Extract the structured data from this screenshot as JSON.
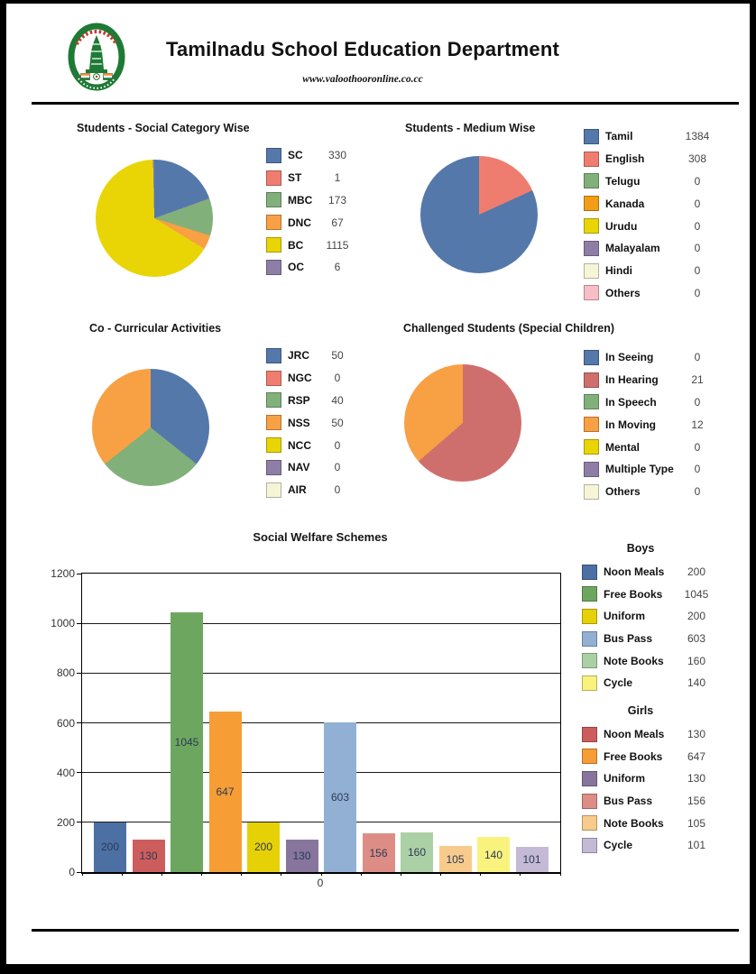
{
  "header": {
    "title": "Tamilnadu School Education Department",
    "subtitle": "www.valoothooronline.co.cc",
    "logo": "tamilnadu-government-emblem"
  },
  "chart_data": [
    {
      "type": "pie",
      "title": "Students - Social Category Wise",
      "legend_position": "right",
      "items": [
        {
          "label": "SC",
          "value": 330,
          "color": "#5578ab"
        },
        {
          "label": "ST",
          "value": 1,
          "color": "#ef7d6f"
        },
        {
          "label": "MBC",
          "value": 173,
          "color": "#81b07a"
        },
        {
          "label": "DNC",
          "value": 67,
          "color": "#f8a044"
        },
        {
          "label": "BC",
          "value": 1115,
          "color": "#e9d505"
        },
        {
          "label": "OC",
          "value": 6,
          "color": "#8e7ea6"
        }
      ],
      "draw_order": [
        0,
        1,
        2,
        3,
        4,
        5
      ]
    },
    {
      "type": "pie",
      "title": "Students - Medium Wise",
      "legend_position": "right",
      "items": [
        {
          "label": "Tamil",
          "value": 1384,
          "color": "#5578ab"
        },
        {
          "label": "English",
          "value": 308,
          "color": "#ef7d6f"
        },
        {
          "label": "Telugu",
          "value": 0,
          "color": "#81b07a"
        },
        {
          "label": "Kanada",
          "value": 0,
          "color": "#f29d17"
        },
        {
          "label": "Urudu",
          "value": 0,
          "color": "#e9d505"
        },
        {
          "label": "Malayalam",
          "value": 0,
          "color": "#8e7ea6"
        },
        {
          "label": "Hindi",
          "value": 0,
          "color": "#f7f5d8"
        },
        {
          "label": "Others",
          "value": 0,
          "color": "#f7bec8"
        }
      ],
      "draw_order": [
        1,
        0,
        2,
        3,
        4,
        5,
        6,
        7
      ]
    },
    {
      "type": "pie",
      "title": "Co - Curricular Activities",
      "legend_position": "right",
      "items": [
        {
          "label": "JRC",
          "value": 50,
          "color": "#5578ab"
        },
        {
          "label": "NGC",
          "value": 0,
          "color": "#ef7d6f"
        },
        {
          "label": "RSP",
          "value": 40,
          "color": "#81b07a"
        },
        {
          "label": "NSS",
          "value": 50,
          "color": "#f8a044"
        },
        {
          "label": "NCC",
          "value": 0,
          "color": "#e9d505"
        },
        {
          "label": "NAV",
          "value": 0,
          "color": "#8e7ea6"
        },
        {
          "label": "AIR",
          "value": 0,
          "color": "#f7f5d8"
        }
      ],
      "draw_order": [
        0,
        1,
        2,
        3,
        4,
        5,
        6
      ]
    },
    {
      "type": "pie",
      "title": "Challenged Students (Special Children)",
      "legend_position": "right",
      "items": [
        {
          "label": "In Seeing",
          "value": 0,
          "color": "#5578ab"
        },
        {
          "label": "In Hearing",
          "value": 21,
          "color": "#cf6f6d"
        },
        {
          "label": "In Speech",
          "value": 0,
          "color": "#81b07a"
        },
        {
          "label": "In Moving",
          "value": 12,
          "color": "#f8a044"
        },
        {
          "label": "Mental",
          "value": 0,
          "color": "#e9d505"
        },
        {
          "label": "Multiple Type",
          "value": 0,
          "color": "#8e7ea6"
        },
        {
          "label": "Others",
          "value": 0,
          "color": "#f7f5d8"
        }
      ],
      "draw_order": [
        0,
        1,
        2,
        3,
        4,
        5,
        6
      ]
    },
    {
      "type": "bar",
      "title": "Social Welfare Schemes",
      "ylim": [
        0,
        1200
      ],
      "y_ticks": [
        1200,
        1000,
        800,
        600,
        400,
        200,
        0
      ],
      "x_tick_label": "0",
      "grid": true,
      "legend_position": "right",
      "categories": [
        "Noon Meals",
        "Free Books",
        "Uniform",
        "Bus Pass",
        "Note Books",
        "Cycle"
      ],
      "series": [
        {
          "name": "Boys",
          "values": [
            200,
            1045,
            200,
            603,
            160,
            140
          ],
          "colors": [
            "#4d70a4",
            "#6da75f",
            "#e6d106",
            "#92b0d4",
            "#acd0a5",
            "#f9f37e"
          ]
        },
        {
          "name": "Girls",
          "values": [
            130,
            647,
            130,
            156,
            105,
            101
          ],
          "colors": [
            "#cd5d5d",
            "#f69d35",
            "#87759e",
            "#dd8d86",
            "#f8cb8d",
            "#c5bad6"
          ]
        }
      ]
    }
  ]
}
